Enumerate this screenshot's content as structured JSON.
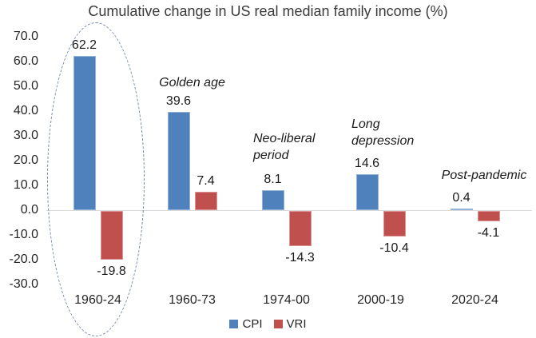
{
  "chart_data": {
    "type": "bar",
    "title": "Cumulative change in US real median family income (%)",
    "categories": [
      "1960-24",
      "1960-73",
      "1974-00",
      "2000-19",
      "2020-24"
    ],
    "series": [
      {
        "name": "CPI",
        "color": "#4F81BD",
        "border_color": "#95b3d7",
        "values": [
          62.2,
          39.6,
          8.1,
          14.6,
          0.4
        ],
        "labels": [
          "62.2",
          "39.6",
          "8.1",
          "14.6",
          "0.4"
        ]
      },
      {
        "name": "VRI",
        "color": "#C0504D",
        "border_color": "#d99694",
        "values": [
          -19.8,
          7.4,
          -14.3,
          -10.4,
          -4.1
        ],
        "labels": [
          "-19.8",
          "7.4",
          "-14.3",
          "-10.4",
          "-4.1"
        ]
      }
    ],
    "y_axis": {
      "min": -30,
      "max": 70,
      "step": 10,
      "tick_labels": [
        "70.0",
        "60.0",
        "50.0",
        "40.0",
        "30.0",
        "20.0",
        "10.0",
        "0.0",
        "-10.0",
        "-20.0",
        "-30.0"
      ]
    },
    "annotations": [
      {
        "lines": [
          "Golden age"
        ],
        "period": "1960-73"
      },
      {
        "lines": [
          "Neo-liberal",
          "period"
        ],
        "period": "1974-00"
      },
      {
        "lines": [
          "Long",
          "depression"
        ],
        "period": "2000-19"
      },
      {
        "lines": [
          "Post-pandemic"
        ],
        "period": "2020-24"
      }
    ],
    "legend": {
      "position": "bottom",
      "entries": [
        "CPI",
        "VRI"
      ]
    },
    "highlight": {
      "period": "1960-24",
      "style": "dashed-ellipse"
    },
    "grid": false
  }
}
